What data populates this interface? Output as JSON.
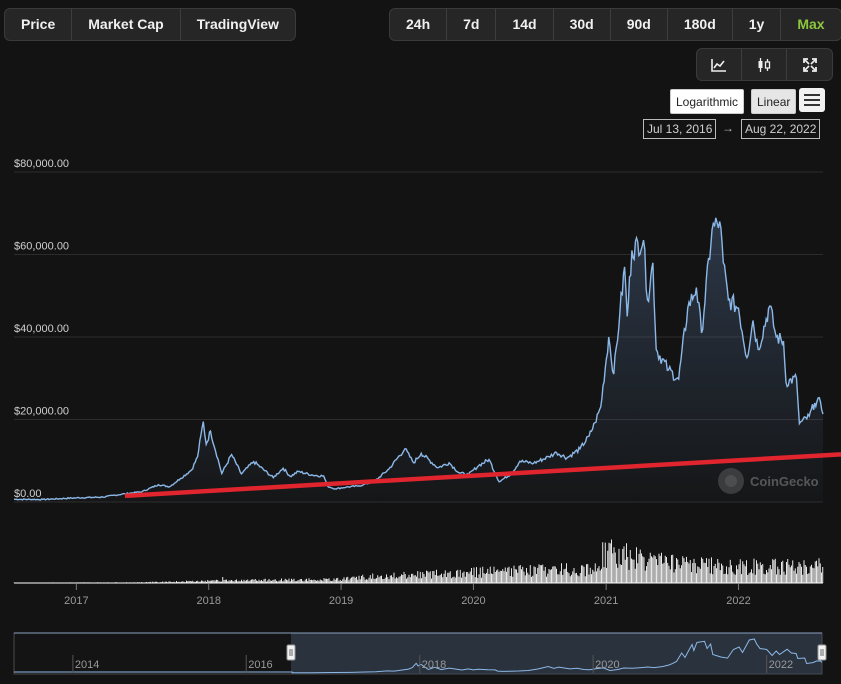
{
  "metric_tabs": [
    {
      "label": "Price",
      "active": false
    },
    {
      "label": "Market Cap",
      "active": false
    },
    {
      "label": "TradingView",
      "active": false
    }
  ],
  "range_tabs": [
    {
      "label": "24h",
      "active": false
    },
    {
      "label": "7d",
      "active": false
    },
    {
      "label": "14d",
      "active": false
    },
    {
      "label": "30d",
      "active": false
    },
    {
      "label": "90d",
      "active": false
    },
    {
      "label": "180d",
      "active": false
    },
    {
      "label": "1y",
      "active": false
    },
    {
      "label": "Max",
      "active": true
    }
  ],
  "view_icons": [
    "line-chart-icon",
    "candlestick-icon",
    "fullscreen-icon"
  ],
  "scale": {
    "log_label": "Logarithmic",
    "linear_label": "Linear",
    "selected": "Linear"
  },
  "date_range": {
    "from": "Jul 13, 2016",
    "arrow": "→",
    "to": "Aug 22, 2022"
  },
  "watermark": "CoinGecko",
  "colors": {
    "line": "#8cb8e8",
    "trend": "#e0252f",
    "active_tab": "#8dc63f",
    "volume": "#ffffff"
  },
  "chart_data": {
    "type": "line",
    "y_ticks": [
      "$0.00",
      "$20,000.00",
      "$40,000.00",
      "$60,000.00",
      "$80,000.00"
    ],
    "ylim": [
      0,
      80000
    ],
    "x_ticks": [
      "2017",
      "2018",
      "2019",
      "2020",
      "2021",
      "2022"
    ],
    "price_series": [
      [
        "2016-07-13",
        660
      ],
      [
        "2016-10-01",
        610
      ],
      [
        "2017-01-01",
        1000
      ],
      [
        "2017-03-15",
        1200
      ],
      [
        "2017-05-15",
        2000
      ],
      [
        "2017-07-01",
        2500
      ],
      [
        "2017-08-15",
        4200
      ],
      [
        "2017-09-15",
        3700
      ],
      [
        "2017-10-15",
        5700
      ],
      [
        "2017-11-15",
        7800
      ],
      [
        "2017-12-01",
        10900
      ],
      [
        "2017-12-17",
        19500
      ],
      [
        "2017-12-25",
        14000
      ],
      [
        "2018-01-06",
        17200
      ],
      [
        "2018-02-06",
        6900
      ],
      [
        "2018-03-05",
        11500
      ],
      [
        "2018-04-01",
        6800
      ],
      [
        "2018-05-05",
        9800
      ],
      [
        "2018-06-28",
        5900
      ],
      [
        "2018-07-25",
        8200
      ],
      [
        "2018-08-14",
        6200
      ],
      [
        "2018-09-05",
        7400
      ],
      [
        "2018-10-15",
        6500
      ],
      [
        "2018-11-14",
        6300
      ],
      [
        "2018-11-25",
        3800
      ],
      [
        "2018-12-15",
        3200
      ],
      [
        "2019-01-15",
        3600
      ],
      [
        "2019-02-20",
        3900
      ],
      [
        "2019-04-03",
        5000
      ],
      [
        "2019-05-13",
        8000
      ],
      [
        "2019-06-26",
        12900
      ],
      [
        "2019-07-20",
        9500
      ],
      [
        "2019-08-10",
        11800
      ],
      [
        "2019-09-25",
        8300
      ],
      [
        "2019-10-26",
        9500
      ],
      [
        "2019-11-22",
        7100
      ],
      [
        "2019-12-18",
        6600
      ],
      [
        "2020-01-15",
        8800
      ],
      [
        "2020-02-13",
        10300
      ],
      [
        "2020-03-12",
        4900
      ],
      [
        "2020-04-15",
        6900
      ],
      [
        "2020-05-08",
        9900
      ],
      [
        "2020-06-15",
        9400
      ],
      [
        "2020-07-27",
        11000
      ],
      [
        "2020-08-17",
        12000
      ],
      [
        "2020-09-15",
        10700
      ],
      [
        "2020-10-21",
        12900
      ],
      [
        "2020-11-15",
        16000
      ],
      [
        "2020-12-01",
        19200
      ],
      [
        "2020-12-17",
        23000
      ],
      [
        "2021-01-08",
        40000
      ],
      [
        "2021-01-22",
        31000
      ],
      [
        "2021-02-08",
        46000
      ],
      [
        "2021-02-21",
        57000
      ],
      [
        "2021-02-28",
        45000
      ],
      [
        "2021-03-13",
        61000
      ],
      [
        "2021-04-14",
        63500
      ],
      [
        "2021-04-25",
        49000
      ],
      [
        "2021-05-10",
        58000
      ],
      [
        "2021-05-19",
        37000
      ],
      [
        "2021-06-22",
        32000
      ],
      [
        "2021-07-20",
        29800
      ],
      [
        "2021-08-14",
        47000
      ],
      [
        "2021-09-07",
        52000
      ],
      [
        "2021-09-21",
        41000
      ],
      [
        "2021-10-20",
        66000
      ],
      [
        "2021-11-10",
        68000
      ],
      [
        "2021-11-20",
        58000
      ],
      [
        "2021-12-04",
        49000
      ],
      [
        "2022-01-01",
        47000
      ],
      [
        "2022-01-24",
        35000
      ],
      [
        "2022-02-10",
        44000
      ],
      [
        "2022-02-24",
        37000
      ],
      [
        "2022-03-28",
        47500
      ],
      [
        "2022-04-15",
        40000
      ],
      [
        "2022-05-05",
        39000
      ],
      [
        "2022-05-12",
        29000
      ],
      [
        "2022-06-10",
        30000
      ],
      [
        "2022-06-18",
        19000
      ],
      [
        "2022-07-15",
        20800
      ],
      [
        "2022-07-30",
        24000
      ],
      [
        "2022-08-15",
        24300
      ],
      [
        "2022-08-22",
        21300
      ]
    ],
    "trend_line": [
      [
        "2017-05-15",
        1500
      ],
      [
        "2022-08-22",
        11300
      ]
    ],
    "volume_ticks": [
      "2017",
      "2018",
      "2019",
      "2020",
      "2021",
      "2022"
    ],
    "navigator_ticks": [
      "2014",
      "2016",
      "2018",
      "2020",
      "2022"
    ]
  }
}
